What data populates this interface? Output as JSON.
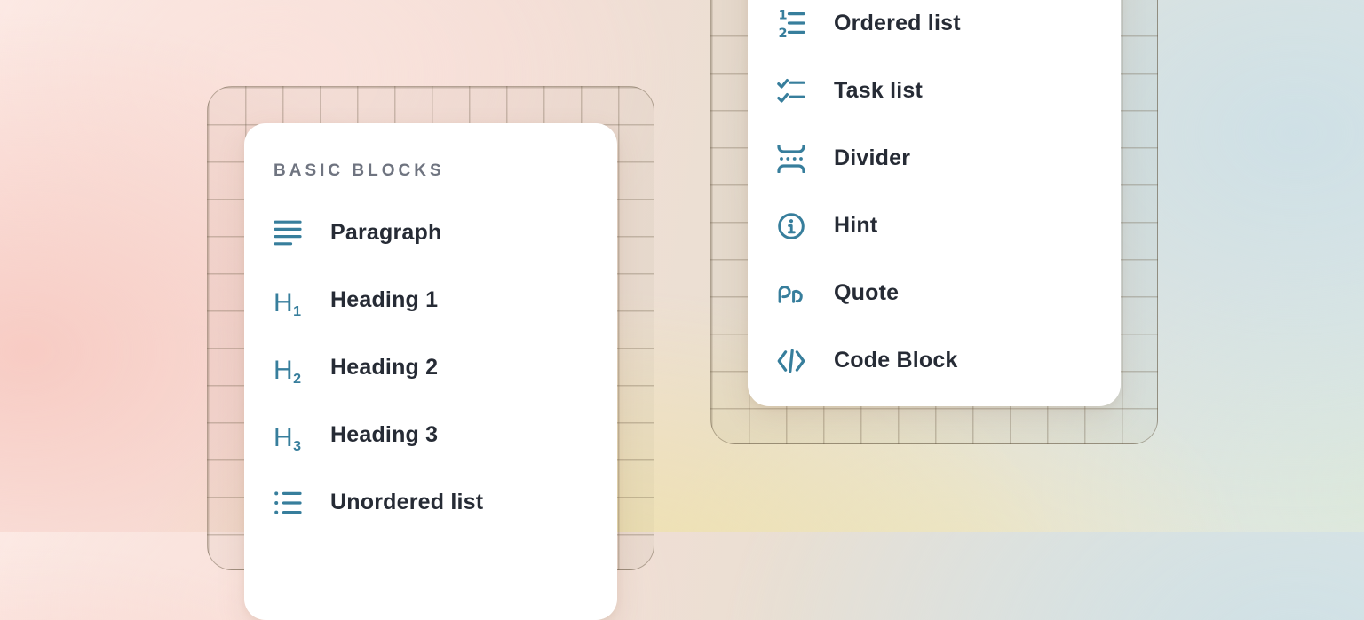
{
  "colors": {
    "icon_accent": "#377E9C",
    "label_text": "#262B35",
    "section_label_text": "#6F7480",
    "card_background": "#FFFFFF"
  },
  "left_card": {
    "section_label": "BASIC BLOCKS",
    "items": [
      {
        "label": "Paragraph",
        "icon": "paragraph-icon"
      },
      {
        "label": "Heading 1",
        "icon": "heading-1-icon",
        "icon_glyph": "H",
        "icon_sub": "1"
      },
      {
        "label": "Heading 2",
        "icon": "heading-2-icon",
        "icon_glyph": "H",
        "icon_sub": "2"
      },
      {
        "label": "Heading 3",
        "icon": "heading-3-icon",
        "icon_glyph": "H",
        "icon_sub": "3"
      },
      {
        "label": "Unordered list",
        "icon": "unordered-list-icon"
      }
    ]
  },
  "right_card": {
    "items": [
      {
        "label": "Ordered list",
        "icon": "ordered-list-icon",
        "icon_numbers": [
          "1",
          "2"
        ]
      },
      {
        "label": "Task list",
        "icon": "task-list-icon"
      },
      {
        "label": "Divider",
        "icon": "divider-icon"
      },
      {
        "label": "Hint",
        "icon": "hint-icon"
      },
      {
        "label": "Quote",
        "icon": "quote-icon"
      },
      {
        "label": "Code Block",
        "icon": "code-block-icon"
      }
    ]
  }
}
